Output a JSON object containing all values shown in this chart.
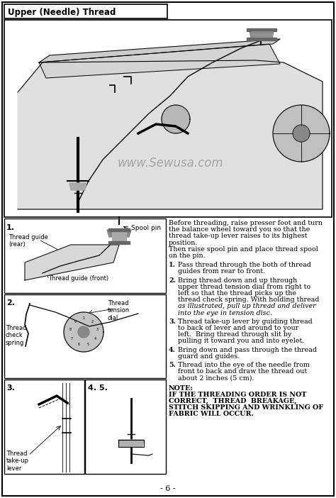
{
  "title": "Upper (Needle) Thread",
  "watermark": "www.Sewusa.com",
  "page_number": "- 6 -",
  "background_color": "#ffffff",
  "border_color": "#000000",
  "text_color": "#000000",
  "intro_text_line1": "Before threading, raise presser foot and turn",
  "intro_text_line2": "the balance wheel toward you so that the",
  "intro_text_line3": "thread take-up lever raises to its highest",
  "intro_text_line4": "position.",
  "intro_text_line5": "Then raise spool pin and place thread spool",
  "intro_text_line6": "on the pin.",
  "steps": [
    "Pass thread through the both of thread\nguides from rear to front.",
    "Bring thread down and up through\nupper thread tension dial from right to\nleft so that the thread picks up the\nthread check spring. With holding thread\nas illustrated, pull up thread and deliver\ninto the eye in tension disc.",
    "Thread take-up lever by guiding thread\nto back of lever and around to your\nleft.  Bring thread through slit by\npulling it toward you and into eyelet.",
    "Bring down and pass through the thread\nguard and guides.",
    "Thread into the eye of the needle from\nfront to back and draw the thread out\nabout 2 inches (5 cm)."
  ],
  "note_title": "NOTE:",
  "note_text": "IF THE THREADING ORDER IS NOT\nCORRECT,  THREAD  BREAKAGE,\nSTITCH SKIPPING AND WRINKLING OF\nFABRIC WILL OCCUR.",
  "label_spool_pin": "Spool pin",
  "label_thread_guide_rear": "Thread guide\n(rear)",
  "label_thread_guide_front": "Thread guide (front)",
  "label_thread_tension_dial": "Thread\ntension\ndial",
  "label_thread_check_spring": "Thread\ncheck\nspring",
  "label_thread_takeup_lever": "Thread\ntake-up\nlever",
  "section_numbers": [
    "1.",
    "2.",
    "3.",
    "4. 5."
  ]
}
